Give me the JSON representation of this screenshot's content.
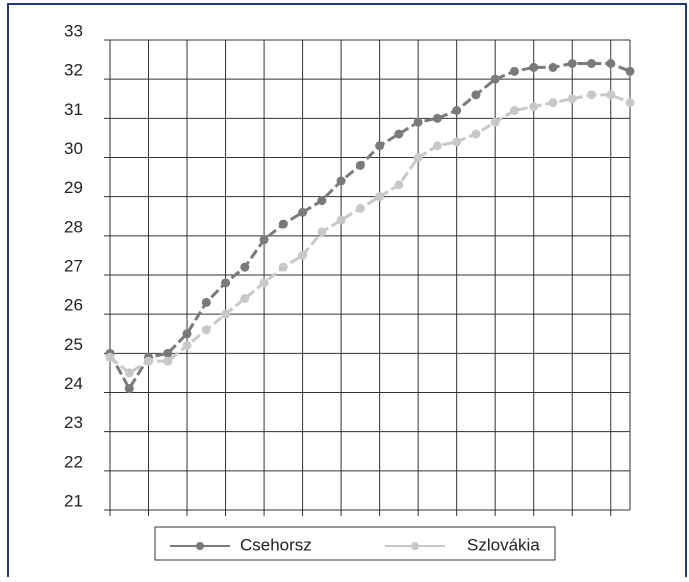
{
  "chart_data": {
    "type": "line",
    "categories": [
      null,
      null,
      null,
      null,
      null,
      null,
      null,
      null,
      null,
      null,
      null,
      null,
      null,
      null,
      null,
      null,
      null,
      null,
      null,
      null,
      null,
      null,
      null,
      null,
      null,
      null,
      null,
      null
    ],
    "series": [
      {
        "name": "Csehorsz",
        "color": "#7a7a7a",
        "values": [
          25.0,
          24.1,
          24.9,
          25.0,
          25.5,
          26.3,
          26.8,
          27.2,
          27.9,
          28.3,
          28.6,
          28.9,
          29.4,
          29.8,
          30.3,
          30.6,
          30.9,
          31.0,
          31.2,
          31.6,
          32.0,
          32.2,
          32.3,
          32.3,
          32.4,
          32.4,
          32.4,
          32.2
        ]
      },
      {
        "name": "Szlovákia",
        "color": "#c8c8c8",
        "values": [
          24.9,
          24.5,
          24.8,
          24.8,
          25.2,
          25.6,
          26.0,
          26.4,
          26.8,
          27.2,
          27.5,
          28.1,
          28.4,
          28.7,
          29.0,
          29.3,
          30.0,
          30.3,
          30.4,
          30.6,
          30.9,
          31.2,
          31.3,
          31.4,
          31.5,
          31.6,
          31.6,
          31.4
        ]
      }
    ],
    "ylim": [
      21,
      33
    ],
    "yticks": [
      21,
      22,
      23,
      24,
      25,
      26,
      27,
      28,
      29,
      30,
      31,
      32,
      33
    ],
    "grid": true,
    "legend": "bottom"
  }
}
